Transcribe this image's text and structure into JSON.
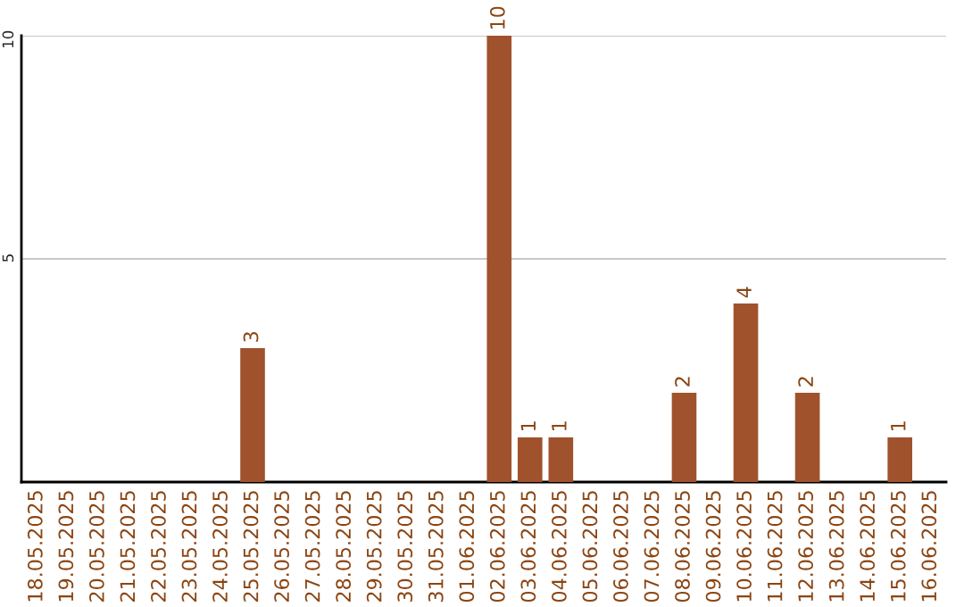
{
  "chart_data": {
    "type": "bar",
    "categories": [
      "18.05.2025",
      "19.05.2025",
      "20.05.2025",
      "21.05.2025",
      "22.05.2025",
      "23.05.2025",
      "24.05.2025",
      "25.05.2025",
      "26.05.2025",
      "27.05.2025",
      "28.05.2025",
      "29.05.2025",
      "30.05.2025",
      "31.05.2025",
      "01.06.2025",
      "02.06.2025",
      "03.06.2025",
      "04.06.2025",
      "05.06.2025",
      "06.06.2025",
      "07.06.2025",
      "08.06.2025",
      "09.06.2025",
      "10.06.2025",
      "11.06.2025",
      "12.06.2025",
      "13.06.2025",
      "14.06.2025",
      "15.06.2025",
      "16.06.2025"
    ],
    "values": [
      0,
      0,
      0,
      0,
      0,
      0,
      0,
      3,
      0,
      0,
      0,
      0,
      0,
      0,
      0,
      10,
      1,
      1,
      0,
      0,
      0,
      2,
      0,
      4,
      0,
      2,
      0,
      0,
      1,
      0
    ],
    "value_labels": [
      null,
      null,
      null,
      null,
      null,
      null,
      null,
      "3",
      null,
      null,
      null,
      null,
      null,
      null,
      null,
      "10",
      "1",
      "1",
      null,
      null,
      null,
      "2",
      null,
      "4",
      null,
      "2",
      null,
      null,
      "1",
      null
    ],
    "color": "#a0522d",
    "ylim": [
      0,
      10
    ],
    "yticks": [
      5,
      10
    ],
    "grid": "y"
  }
}
